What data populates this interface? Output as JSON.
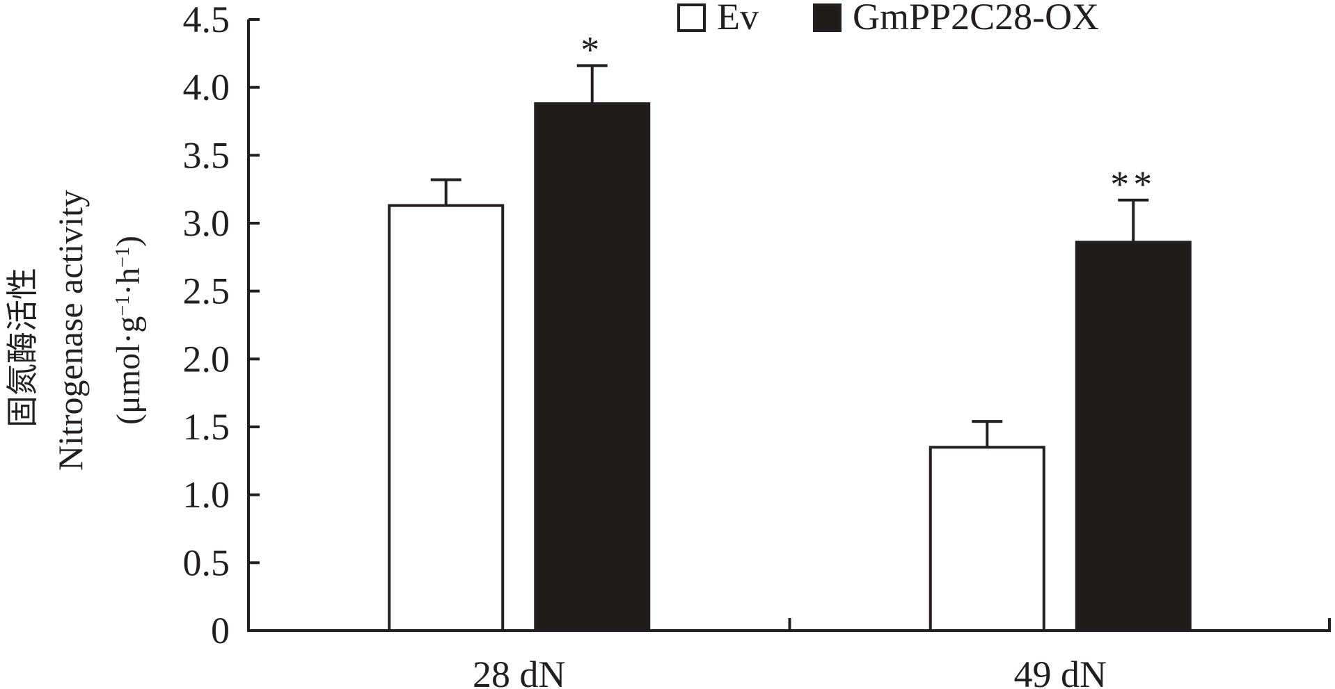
{
  "chart_data": {
    "type": "bar",
    "ylabel_cn": "固氮酶活性",
    "ylabel_en": "Nitrogenase activity",
    "yunit_open": "(μmol·g",
    "yunit_exp1": "−1",
    "yunit_mid": "·h",
    "yunit_exp2": "−1",
    "yunit_close": ")",
    "xlabel": "",
    "ylim": [
      0,
      4.5
    ],
    "yticks": [
      0,
      0.5,
      1.0,
      1.5,
      2.0,
      2.5,
      3.0,
      3.5,
      4.0,
      4.5
    ],
    "ytick_labels": [
      "0",
      "0.5",
      "1.0",
      "1.5",
      "2.0",
      "2.5",
      "3.0",
      "3.5",
      "4.0",
      "4.5"
    ],
    "categories": [
      "28 dN",
      "49 dN"
    ],
    "series": [
      {
        "name": "Ev",
        "values": [
          3.13,
          1.35
        ],
        "errors": [
          0.19,
          0.19
        ],
        "fill": "#ffffff",
        "stroke": "#231f20",
        "significance": [
          "",
          ""
        ]
      },
      {
        "name": "GmPP2C28-OX",
        "values": [
          3.88,
          2.86
        ],
        "errors": [
          0.28,
          0.31
        ],
        "fill": "#1e1b18",
        "stroke": "#231f20",
        "significance": [
          "*",
          "**"
        ]
      }
    ],
    "legend_position": "top-right",
    "grid": false,
    "colors": {
      "axis": "#231f20",
      "bar_dark": "#1e1b18",
      "bar_light": "#ffffff"
    }
  }
}
